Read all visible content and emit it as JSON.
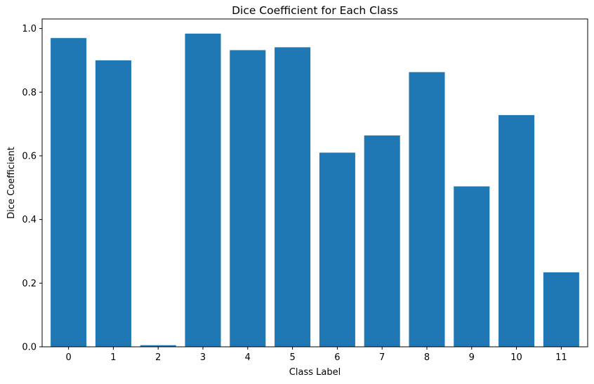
{
  "chart_data": {
    "type": "bar",
    "title": "Dice Coefficient for Each Class",
    "xlabel": "Class Label",
    "ylabel": "Dice Coefficient",
    "categories": [
      "0",
      "1",
      "2",
      "3",
      "4",
      "5",
      "6",
      "7",
      "8",
      "9",
      "10",
      "11"
    ],
    "values": [
      0.97,
      0.9,
      0.005,
      0.984,
      0.932,
      0.941,
      0.61,
      0.664,
      0.863,
      0.504,
      0.728,
      0.234
    ],
    "ylim": [
      0,
      1.03
    ],
    "yticks": [
      0.0,
      0.2,
      0.4,
      0.6,
      0.8,
      1.0
    ],
    "ytick_labels": [
      "0.0",
      "0.2",
      "0.4",
      "0.6",
      "0.8",
      "1.0"
    ],
    "bar_color": "#1f77b4",
    "grid": false,
    "legend": false
  }
}
